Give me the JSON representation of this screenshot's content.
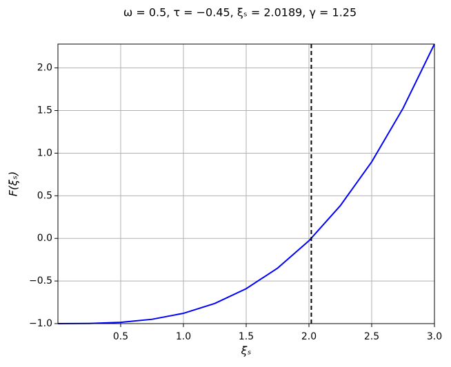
{
  "chart_data": {
    "type": "line",
    "title": "ω = 0.5,   τ = −0.45,   ξₛ = 2.0189,   γ = 1.25",
    "x_label": "ξₛ",
    "y_label": "F(ξₛ)",
    "x": [
      0,
      0.25,
      0.5,
      0.75,
      1.0,
      1.25,
      1.5,
      1.75,
      2.0,
      2.25,
      2.5,
      2.75,
      3.0
    ],
    "values": [
      -1,
      -0.998,
      -0.985,
      -0.949,
      -0.879,
      -0.763,
      -0.59,
      -0.349,
      -0.028,
      0.384,
      0.898,
      1.527,
      2.281
    ],
    "color": "#0000ff",
    "vline": {
      "x": 2.0189,
      "color": "#000000",
      "style": "dashed"
    },
    "xlim": [
      0,
      3
    ],
    "ylim": [
      -1,
      2.28
    ],
    "xticks": [
      0.5,
      {
        "value": 1,
        "label": "1.0"
      },
      1.5,
      {
        "value": 2,
        "label": "2.0"
      },
      2.5,
      {
        "value": 3,
        "label": "3.0"
      }
    ],
    "yticks": [
      {
        "value": -1,
        "label": "−1.0"
      },
      {
        "value": -0.5,
        "label": "−0.5"
      },
      {
        "value": 0,
        "label": "0.0"
      },
      0.5,
      {
        "value": 1,
        "label": "1.0"
      },
      1.5,
      {
        "value": 2,
        "label": "2.0"
      }
    ],
    "grid": true
  }
}
